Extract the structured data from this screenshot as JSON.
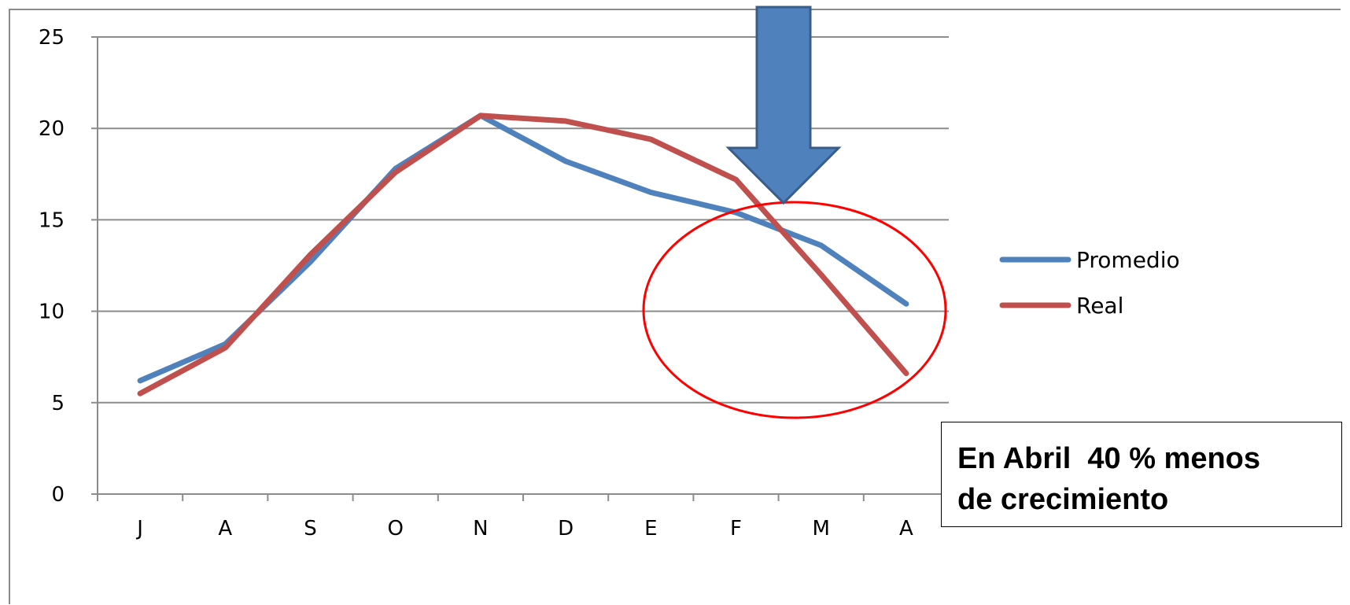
{
  "chart_data": {
    "type": "line",
    "categories": [
      "J",
      "A",
      "S",
      "O",
      "N",
      "D",
      "E",
      "F",
      "M",
      "A"
    ],
    "series": [
      {
        "name": "Promedio",
        "color": "#4F81BD",
        "values": [
          6.2,
          8.2,
          12.7,
          17.8,
          20.7,
          18.2,
          16.5,
          15.4,
          13.6,
          10.4
        ]
      },
      {
        "name": "Real",
        "color": "#C0504D",
        "values": [
          5.5,
          8.0,
          13.1,
          17.6,
          20.7,
          20.4,
          19.4,
          17.2,
          12.0,
          6.6
        ]
      }
    ],
    "ylim": [
      0,
      25
    ],
    "yticks": [
      "0",
      "5",
      "10",
      "15",
      "20",
      "25"
    ],
    "grid": true,
    "legend_position": "right",
    "annotation": {
      "lines": [
        "En Abril  40 % menos",
        "de crecimiento"
      ],
      "circle_color": "#FF0000",
      "arrow_color": "#4F81BD"
    }
  }
}
